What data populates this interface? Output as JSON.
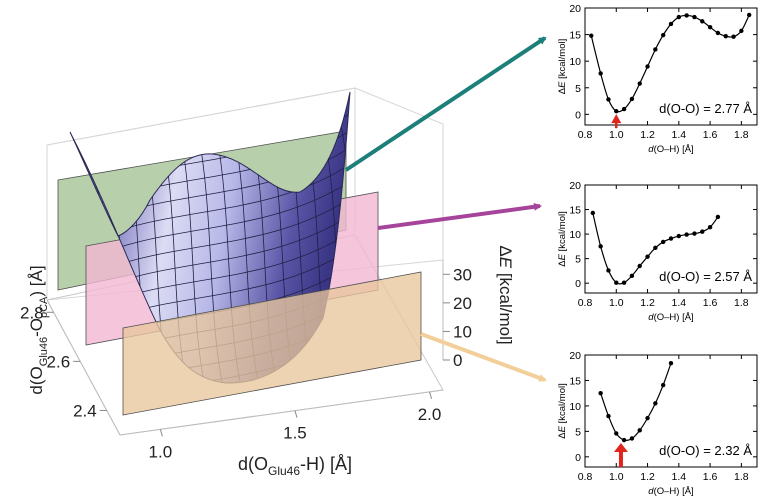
{
  "chart_data": [
    {
      "type": "surface3d",
      "name": "potential-energy-surface",
      "xlabel": {
        "main": "d(O",
        "sub": "Glu46",
        "tail": "-H) [Å]"
      },
      "ylabel": {
        "main": "d(O",
        "sub1": "Glu46",
        "mid": "-O",
        "sub2": "pCA",
        "tail": ") [Å]"
      },
      "zlabel": {
        "delta": "Δ",
        "italic": "E",
        "tail": " [kcal/mol]"
      },
      "xticks": [
        "1.0",
        "1.5",
        "2.0"
      ],
      "yticks": [
        "2.4",
        "2.6",
        "2.8"
      ],
      "zticks": [
        "0",
        "10",
        "20",
        "30"
      ],
      "xlim": [
        0.85,
        2.05
      ],
      "ylim": [
        2.3,
        2.85
      ],
      "zlim": [
        0,
        35
      ],
      "slices": [
        {
          "name": "slice-green",
          "d_oo": 2.77,
          "color": "#9fbf8f",
          "arrow_color": "#1c7f79"
        },
        {
          "name": "slice-pink",
          "d_oo": 2.57,
          "color": "#f2b6d2",
          "arrow_color": "#a5449a"
        },
        {
          "name": "slice-tan",
          "d_oo": 2.32,
          "color": "#e8c79c",
          "arrow_color": "#f2ce98"
        }
      ]
    },
    {
      "type": "line",
      "name": "profile-2.77",
      "annotation": "d(O-O) = 2.77 Å",
      "xlabel": {
        "italic": "d",
        "tail": "(O–H) [Å]"
      },
      "ylabel": {
        "delta": "Δ",
        "italic": "E",
        "tail": " [kcal/mol]"
      },
      "xlim": [
        0.8,
        1.9
      ],
      "ylim": [
        -2,
        20
      ],
      "xticks": [
        0.8,
        1.0,
        1.2,
        1.4,
        1.6,
        1.8
      ],
      "yticks": [
        0,
        5,
        10,
        15,
        20
      ],
      "arrow_x": 1.0,
      "x": [
        0.84,
        0.9,
        0.95,
        1.0,
        1.05,
        1.1,
        1.15,
        1.2,
        1.25,
        1.3,
        1.35,
        1.4,
        1.45,
        1.5,
        1.55,
        1.6,
        1.65,
        1.7,
        1.75,
        1.8,
        1.85
      ],
      "y": [
        14.8,
        7.7,
        2.8,
        0.6,
        1.0,
        2.9,
        5.8,
        9.0,
        12.2,
        14.9,
        17.0,
        18.3,
        18.6,
        18.3,
        17.5,
        16.4,
        15.3,
        14.7,
        14.6,
        15.7,
        18.7
      ]
    },
    {
      "type": "line",
      "name": "profile-2.57",
      "annotation": "d(O-O) = 2.57 Å",
      "xlabel": {
        "italic": "d",
        "tail": "(O–H) [Å]"
      },
      "ylabel": {
        "delta": "Δ",
        "italic": "E",
        "tail": " [kcal/mol]"
      },
      "xlim": [
        0.8,
        1.9
      ],
      "ylim": [
        -2,
        20
      ],
      "xticks": [
        0.8,
        1.0,
        1.2,
        1.4,
        1.6,
        1.8
      ],
      "yticks": [
        0,
        5,
        10,
        15,
        20
      ],
      "x": [
        0.85,
        0.9,
        0.95,
        1.0,
        1.05,
        1.1,
        1.15,
        1.2,
        1.25,
        1.3,
        1.35,
        1.4,
        1.45,
        1.5,
        1.55,
        1.6,
        1.65
      ],
      "y": [
        14.3,
        7.5,
        2.6,
        0.1,
        0.1,
        1.5,
        3.5,
        5.4,
        7.2,
        8.4,
        9.1,
        9.6,
        9.9,
        10.1,
        10.5,
        11.4,
        13.5
      ]
    },
    {
      "type": "line",
      "name": "profile-2.32",
      "annotation": "d(O-O) = 2.32 Å",
      "xlabel": {
        "italic": "d",
        "tail": "(O–H) [Å]"
      },
      "ylabel": {
        "delta": "Δ",
        "italic": "E",
        "tail": " [kcal/mol]"
      },
      "xlim": [
        0.8,
        1.9
      ],
      "ylim": [
        -2,
        20
      ],
      "xticks": [
        0.8,
        1.0,
        1.2,
        1.4,
        1.6,
        1.8
      ],
      "yticks": [
        0,
        5,
        10,
        15,
        20
      ],
      "arrow_x": 1.03,
      "x": [
        0.9,
        0.95,
        1.0,
        1.05,
        1.1,
        1.15,
        1.2,
        1.25,
        1.3,
        1.35
      ],
      "y": [
        12.5,
        8.0,
        4.6,
        3.3,
        3.6,
        5.2,
        7.6,
        10.5,
        14.1,
        18.4
      ]
    }
  ]
}
